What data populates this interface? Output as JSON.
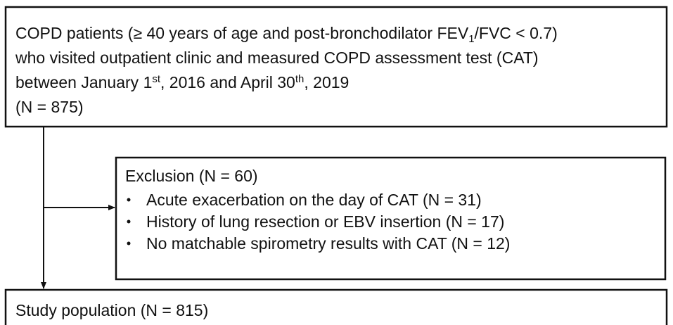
{
  "nodes": [
    {
      "lines": [
        [
          "COPD patients (≥ 40 years of age and post-bronchodilator FEV",
          {
            "sub": "1"
          },
          "/FVC < 0.7)"
        ],
        [
          "who visited outpatient clinic and measured COPD assessment test (CAT)"
        ],
        [
          "between January 1",
          {
            "sup": "st"
          },
          ", 2016 and April 30",
          {
            "sup": "th"
          },
          ", 2019"
        ],
        [
          "(N = 875)"
        ]
      ]
    },
    {
      "title": "Exclusion (N = 60)",
      "items": [
        "Acute exacerbation on the day of CAT (N = 31)",
        "History of lung resection or EBV insertion (N = 17)",
        "No matchable spirometry results with CAT (N = 12)"
      ]
    },
    {
      "lines": [
        [
          "Study population (N = 815)"
        ]
      ]
    }
  ]
}
